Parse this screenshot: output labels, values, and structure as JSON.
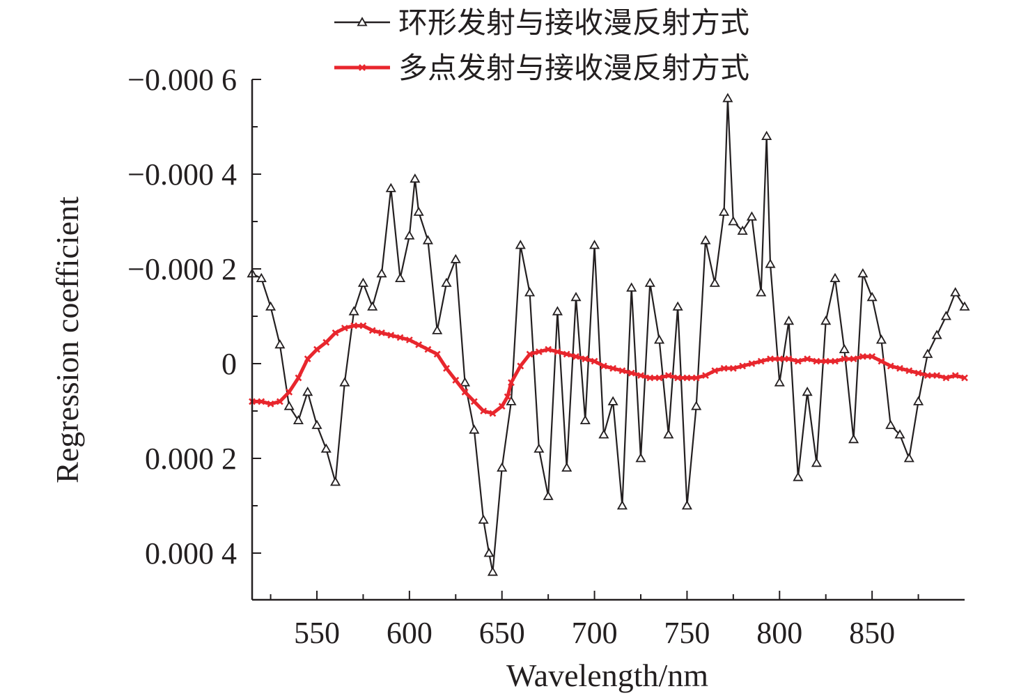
{
  "chart_data": {
    "type": "line",
    "xlabel": "Wavelength/nm",
    "ylabel": "Regression coefficient",
    "xlim": [
      515,
      900
    ],
    "ylim": [
      -0.0006,
      0.0005
    ],
    "y_inverted": true,
    "x_ticks": [
      550,
      600,
      650,
      700,
      750,
      800,
      850
    ],
    "x_tick_labels": [
      "550",
      "600",
      "650",
      "700",
      "750",
      "800",
      "850"
    ],
    "y_ticks": [
      -0.0006,
      -0.0004,
      -0.0002,
      0,
      0.0002,
      0.0004
    ],
    "y_tick_labels": [
      "−0.000 6",
      "−0.000 4",
      "−0.000 2",
      "0",
      "0.000 2",
      "0.000 4"
    ],
    "legend_position": "top-right",
    "grid": false,
    "series": [
      {
        "name": "环形发射与接收漫反射方式",
        "color": "#231f20",
        "marker": "triangle-open",
        "x": [
          515,
          520,
          525,
          530,
          535,
          540,
          545,
          550,
          555,
          560,
          565,
          570,
          575,
          580,
          585,
          590,
          595,
          600,
          603,
          605,
          610,
          615,
          620,
          625,
          630,
          635,
          640,
          643,
          645,
          650,
          655,
          660,
          665,
          670,
          675,
          680,
          685,
          690,
          695,
          700,
          705,
          710,
          715,
          720,
          725,
          730,
          735,
          740,
          745,
          750,
          755,
          760,
          765,
          770,
          772,
          775,
          780,
          785,
          790,
          793,
          795,
          800,
          805,
          810,
          815,
          820,
          825,
          830,
          835,
          840,
          845,
          850,
          855,
          860,
          865,
          870,
          875,
          880,
          885,
          890,
          895,
          900
        ],
        "y": [
          -0.00019,
          -0.00018,
          -0.00012,
          -4e-05,
          9e-05,
          0.00012,
          6e-05,
          0.00013,
          0.00018,
          0.00025,
          4e-05,
          -0.00011,
          -0.00017,
          -0.00012,
          -0.00019,
          -0.00037,
          -0.00018,
          -0.00027,
          -0.00039,
          -0.00032,
          -0.00026,
          -7e-05,
          -0.00017,
          -0.00022,
          4e-05,
          0.00014,
          0.00033,
          0.0004,
          0.00044,
          0.00022,
          8e-05,
          -0.00025,
          -0.00015,
          0.00018,
          0.00028,
          -0.00011,
          0.00022,
          -0.00014,
          0.00012,
          -0.00025,
          0.00015,
          8e-05,
          0.0003,
          -0.00016,
          0.0002,
          -0.00017,
          -5e-05,
          0.00015,
          -0.00012,
          0.0003,
          9e-05,
          -0.00026,
          -0.00017,
          -0.00032,
          -0.00056,
          -0.0003,
          -0.00028,
          -0.00031,
          -0.00015,
          -0.00048,
          -0.00021,
          4e-05,
          -9e-05,
          0.00024,
          6e-05,
          0.00021,
          -9e-05,
          -0.00018,
          -3e-05,
          0.00016,
          -0.00019,
          -0.00014,
          -5e-05,
          0.00013,
          0.00015,
          0.0002,
          8e-05,
          -2e-05,
          -6e-05,
          -0.0001,
          -0.00015,
          -0.00012
        ]
      },
      {
        "name": "多点发射与接收漫反射方式",
        "color": "#e8262d",
        "marker": "x",
        "x": [
          515,
          520,
          525,
          530,
          535,
          540,
          545,
          550,
          555,
          560,
          565,
          570,
          575,
          580,
          585,
          590,
          595,
          600,
          605,
          610,
          615,
          620,
          625,
          630,
          635,
          640,
          645,
          650,
          653,
          655,
          660,
          665,
          670,
          675,
          680,
          685,
          690,
          695,
          700,
          705,
          710,
          715,
          720,
          725,
          730,
          735,
          740,
          745,
          750,
          755,
          760,
          765,
          770,
          775,
          780,
          785,
          790,
          795,
          800,
          805,
          810,
          815,
          820,
          825,
          830,
          835,
          840,
          845,
          850,
          855,
          860,
          865,
          870,
          875,
          880,
          885,
          890,
          895,
          900
        ],
        "y": [
          8e-05,
          8e-05,
          8.5e-05,
          8e-05,
          6e-05,
          3e-05,
          -1e-05,
          -3e-05,
          -4.5e-05,
          -6.5e-05,
          -7.5e-05,
          -8e-05,
          -8e-05,
          -7e-05,
          -6.5e-05,
          -6e-05,
          -5.5e-05,
          -5e-05,
          -4e-05,
          -3e-05,
          -2e-05,
          1e-05,
          3.5e-05,
          6e-05,
          8e-05,
          0.0001,
          0.000105,
          9e-05,
          7e-05,
          4e-05,
          5e-06,
          -2e-05,
          -2.5e-05,
          -3e-05,
          -2.5e-05,
          -2e-05,
          -1.5e-05,
          -1e-05,
          -5e-06,
          5e-06,
          1e-05,
          1.5e-05,
          2e-05,
          2.5e-05,
          3e-05,
          3e-05,
          2.5e-05,
          3e-05,
          3e-05,
          3e-05,
          2.5e-05,
          1.5e-05,
          1e-05,
          1e-05,
          5e-06,
          0.0,
          -5e-06,
          -1e-05,
          -1e-05,
          -1e-05,
          -5e-06,
          -1e-05,
          -5e-06,
          -5e-06,
          -5e-06,
          -1e-05,
          -1e-05,
          -1.5e-05,
          -1.5e-05,
          -5e-06,
          5e-06,
          1e-05,
          1.5e-05,
          2e-05,
          2.5e-05,
          2.5e-05,
          3e-05,
          2.5e-05,
          3e-05
        ]
      }
    ]
  }
}
